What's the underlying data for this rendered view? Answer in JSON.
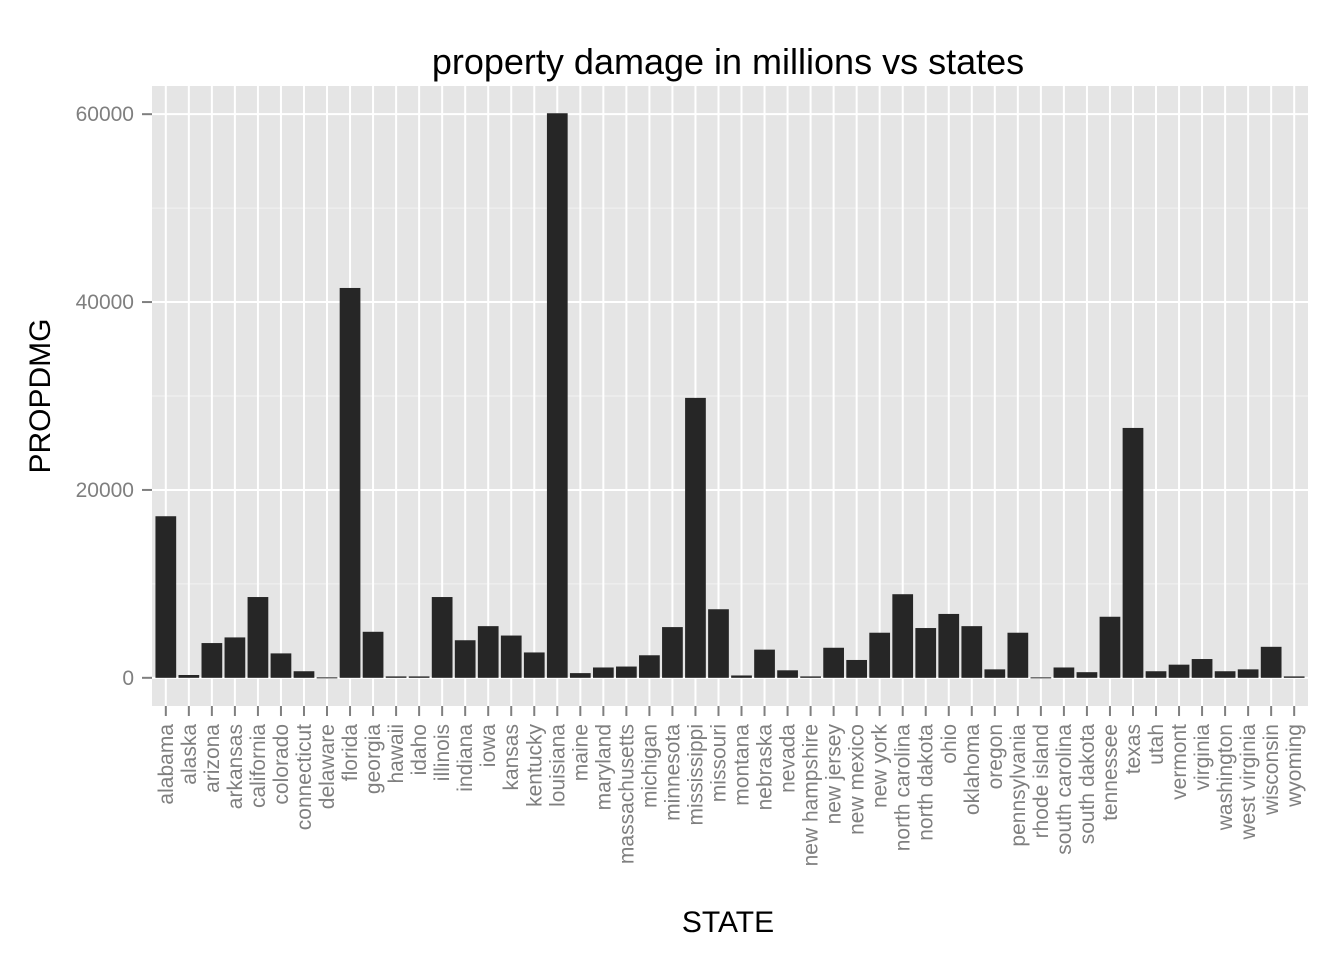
{
  "chart_data": {
    "type": "bar",
    "title": "property damage in millions vs states",
    "xlabel": "STATE",
    "ylabel": "PROPDMG",
    "ylim": [
      -3000,
      63000
    ],
    "yticks": [
      0,
      20000,
      40000,
      60000
    ],
    "grid": true,
    "legend": "none",
    "bar_color": "#262626",
    "panel_color": "#e5e5e5",
    "categories": [
      "alabama",
      "alaska",
      "arizona",
      "arkansas",
      "california",
      "colorado",
      "connecticut",
      "delaware",
      "florida",
      "georgia",
      "hawaii",
      "idaho",
      "illinois",
      "indiana",
      "iowa",
      "kansas",
      "kentucky",
      "louisiana",
      "maine",
      "maryland",
      "massachusetts",
      "michigan",
      "minnesota",
      "mississippi",
      "missouri",
      "montana",
      "nebraska",
      "nevada",
      "new hampshire",
      "new jersey",
      "new mexico",
      "new york",
      "north carolina",
      "north dakota",
      "ohio",
      "oklahoma",
      "oregon",
      "pennsylvania",
      "rhode island",
      "south carolina",
      "south dakota",
      "tennessee",
      "texas",
      "utah",
      "vermont",
      "virginia",
      "washington",
      "west virginia",
      "wisconsin",
      "wyoming"
    ],
    "values": [
      17200,
      300,
      3700,
      4300,
      8600,
      2600,
      700,
      50,
      41500,
      4900,
      150,
      150,
      8600,
      4000,
      5500,
      4500,
      2700,
      60100,
      500,
      1100,
      1200,
      2400,
      5400,
      29800,
      7300,
      250,
      3000,
      800,
      150,
      3200,
      1900,
      4800,
      8900,
      5300,
      6800,
      5500,
      900,
      4800,
      50,
      1100,
      600,
      6500,
      26600,
      700,
      1400,
      2000,
      700,
      900,
      3300,
      150
    ]
  }
}
